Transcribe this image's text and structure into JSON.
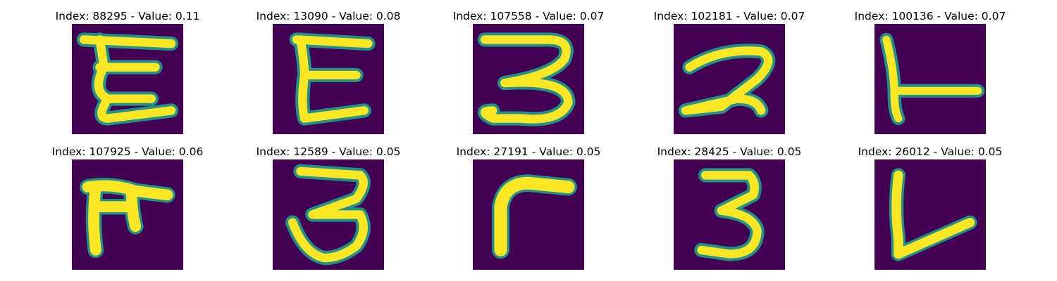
{
  "figure": {
    "colors": {
      "background": "#440154",
      "mid": "#21918c",
      "stroke": "#fde725",
      "edge": "#3b528b"
    },
    "panels": [
      {
        "title": "Index: 88295 - Value: 0.11"
      },
      {
        "title": "Index: 13090 - Value: 0.08"
      },
      {
        "title": "Index: 107558 - Value: 0.07"
      },
      {
        "title": "Index: 102181 - Value: 0.07"
      },
      {
        "title": "Index: 100136 - Value: 0.07"
      },
      {
        "title": "Index: 107925 - Value: 0.06"
      },
      {
        "title": "Index: 12589 - Value: 0.05"
      },
      {
        "title": "Index: 27191 - Value: 0.05"
      },
      {
        "title": "Index: 28425 - Value: 0.05"
      },
      {
        "title": "Index: 26012 - Value: 0.05"
      }
    ]
  }
}
